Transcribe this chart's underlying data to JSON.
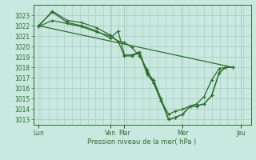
{
  "bg_color": "#c8e8e0",
  "grid_color": "#a8c8c0",
  "line_color": "#2d6e2d",
  "marker_color": "#2d6e2d",
  "tick_color": "#2d6e2d",
  "xlabel": "Pression niveau de la mer( hPa )",
  "ylim": [
    1012.5,
    1024.0
  ],
  "yticks": [
    1013,
    1014,
    1015,
    1016,
    1017,
    1018,
    1019,
    1020,
    1021,
    1022,
    1023
  ],
  "day_labels": [
    "Lun",
    "Ven",
    "Mar",
    "Mer",
    "Jeu"
  ],
  "day_x": [
    0,
    0.57,
    0.68,
    1.14,
    1.6
  ],
  "xlim": [
    -0.04,
    1.68
  ],
  "series": [
    {
      "x": [
        0,
        0.11,
        0.23,
        0.34,
        0.46,
        0.57,
        0.63,
        0.68,
        0.74,
        0.8,
        0.86,
        0.91,
        0.97,
        1.03,
        1.08,
        1.14,
        1.2,
        1.25,
        1.31,
        1.37,
        1.43,
        1.48,
        1.54
      ],
      "y": [
        1021.9,
        1022.5,
        1022.2,
        1021.9,
        1021.4,
        1021.0,
        1020.5,
        1019.1,
        1019.1,
        1019.4,
        1017.3,
        1016.6,
        1014.8,
        1013.0,
        1013.2,
        1013.5,
        1014.3,
        1014.3,
        1014.5,
        1015.3,
        1017.5,
        1018.0,
        1018.0
      ]
    },
    {
      "x": [
        0,
        0.11,
        0.23,
        0.34,
        0.46,
        0.57,
        0.63,
        0.68,
        0.74,
        0.8,
        0.86,
        0.91,
        0.97,
        1.03,
        1.08,
        1.14,
        1.2,
        1.25,
        1.31,
        1.37,
        1.43,
        1.48,
        1.54
      ],
      "y": [
        1022.0,
        1023.3,
        1022.3,
        1022.0,
        1021.5,
        1020.8,
        1021.5,
        1019.2,
        1019.2,
        1019.5,
        1017.5,
        1016.8,
        1015.0,
        1013.0,
        1013.2,
        1013.5,
        1014.3,
        1014.3,
        1014.5,
        1015.3,
        1017.5,
        1018.0,
        1018.0
      ]
    },
    {
      "x": [
        0,
        0.11,
        0.23,
        0.34,
        0.46,
        0.57,
        0.63,
        0.68,
        0.74,
        0.8,
        0.86,
        0.91,
        0.97,
        1.03,
        1.08,
        1.14,
        1.2,
        1.25,
        1.31,
        1.37,
        1.43,
        1.48,
        1.54
      ],
      "y": [
        1021.9,
        1023.4,
        1022.5,
        1022.3,
        1021.8,
        1021.1,
        1020.5,
        1020.4,
        1019.9,
        1019.1,
        1017.8,
        1016.5,
        1014.8,
        1013.5,
        1013.8,
        1014.0,
        1014.3,
        1014.5,
        1015.2,
        1016.8,
        1017.9,
        1018.0,
        1018.0
      ]
    },
    {
      "x": [
        0,
        1.54
      ],
      "y": [
        1022.0,
        1018.0
      ]
    }
  ]
}
